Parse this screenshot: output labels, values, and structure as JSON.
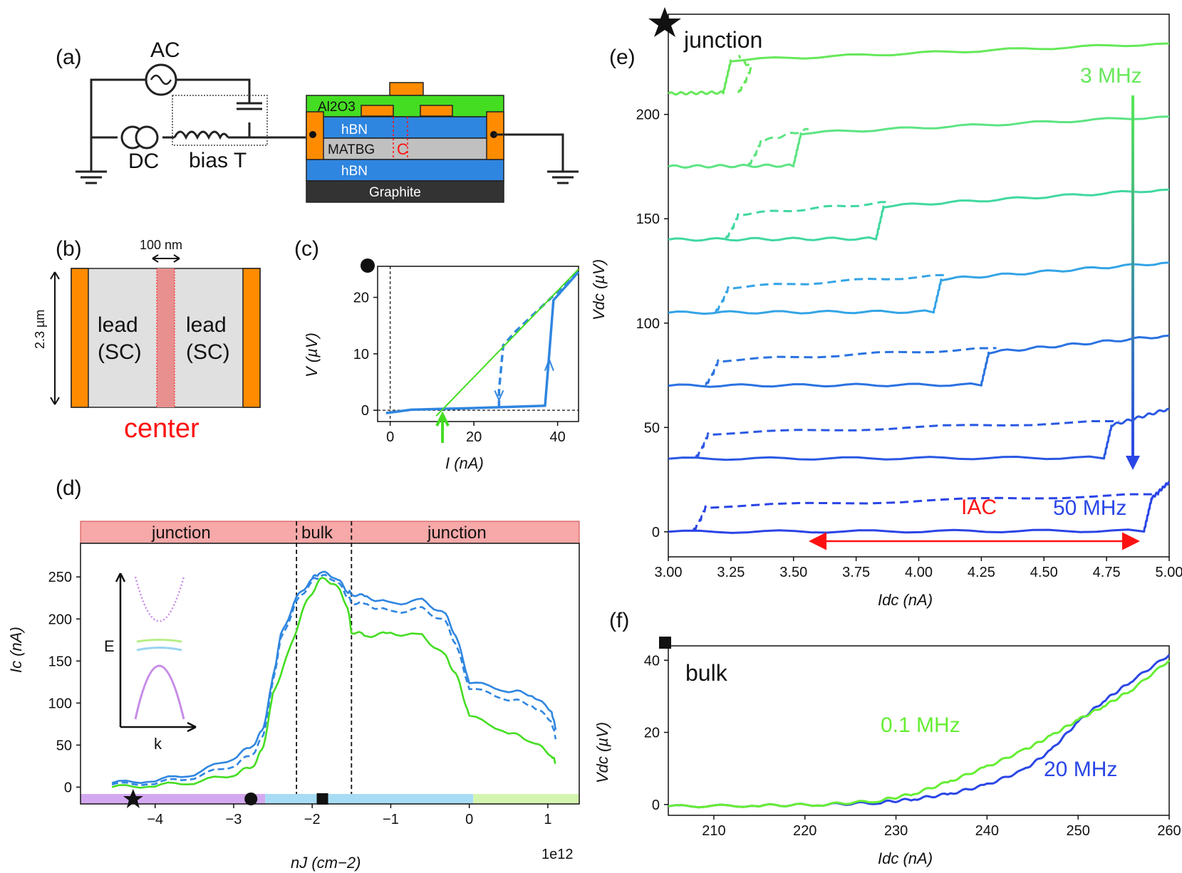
{
  "panels": {
    "a": {
      "label": "(a)",
      "ac": "AC",
      "dc": "DC",
      "bias_t": "bias T",
      "layers": {
        "top": "Al2O3",
        "hbn1": "hBN",
        "matbg": "MATBG",
        "hbn2": "hBN",
        "graphite": "Graphite"
      },
      "center_mark": "C"
    },
    "b": {
      "label": "(b)",
      "width_label": "100 nm",
      "height_label": "2.3 µm",
      "lead_left": [
        "lead",
        "(SC)"
      ],
      "lead_right": [
        "lead",
        "(SC)"
      ],
      "center": "center"
    },
    "c": {
      "label": "(c)",
      "xlabel": "I (nA)",
      "ylabel": "V (µV)",
      "marker": "circle"
    },
    "d": {
      "label": "(d)",
      "regions": [
        "junction",
        "bulk",
        "junction"
      ],
      "xlabel": "nJ (cm−2)",
      "ylabel": "Ic (nA)",
      "offset_text": "1e12",
      "inset": {
        "ylabel": "E",
        "xlabel": "k"
      },
      "markers": [
        "star",
        "circle",
        "square"
      ]
    },
    "e": {
      "label": "(e)",
      "title": "junction",
      "freq_top": "3 MHz",
      "freq_bottom": "50 MHz",
      "iac": "IAC",
      "xlabel": "Idc (nA)",
      "ylabel": "Vdc (µV)",
      "marker": "star"
    },
    "f": {
      "label": "(f)",
      "title": "bulk",
      "freq_a": "0.1 MHz",
      "freq_b": "20 MHz",
      "xlabel": "Idc (nA)",
      "ylabel": "Vdc (µV)",
      "marker": "square"
    }
  },
  "colors": {
    "orange": "#ff8c00",
    "green": "#44dd22",
    "blue": "#2f86e0",
    "darkblue": "#2a46e6",
    "pink": "#f7a8a8",
    "red": "#ff1111",
    "gray": "#c8c8c8",
    "black": "#333333"
  },
  "chart_data": [
    {
      "id": "c",
      "type": "line",
      "xlabel": "I (nA)",
      "ylabel": "V (µV)",
      "xlim": [
        -3,
        45
      ],
      "ylim": [
        -2,
        25.5
      ],
      "xticks": [
        0,
        20,
        40
      ],
      "yticks": [
        0,
        10,
        20
      ],
      "series": [
        {
          "style": "solid",
          "color": "#2f86e0",
          "x": [
            -1,
            5,
            20,
            37,
            38,
            39,
            45
          ],
          "y": [
            -0.5,
            0.1,
            0.4,
            0.8,
            10,
            19.5,
            24.5
          ]
        },
        {
          "style": "dashed",
          "color": "#2f86e0",
          "x": [
            26,
            26,
            27,
            30,
            35,
            40,
            45
          ],
          "y": [
            0.5,
            3.5,
            11.5,
            14,
            17.5,
            21,
            24.5
          ]
        },
        {
          "style": "solid",
          "color": "#44dd22",
          "x": [
            11,
            45
          ],
          "y": [
            -1,
            25
          ]
        }
      ],
      "arrow_x": 12.5
    },
    {
      "id": "d",
      "type": "line",
      "xlabel": "nJ (cm−2)",
      "ylabel": "Ic (nA)",
      "x_scale_label": "1e12",
      "xlim": [
        -4.95,
        1.4
      ],
      "ylim": [
        -20,
        290
      ],
      "xticks": [
        -4,
        -3,
        -2,
        -1,
        0,
        1
      ],
      "yticks": [
        0,
        50,
        100,
        150,
        200,
        250
      ],
      "region_bounds": [
        -2.2,
        -1.5
      ],
      "series": [
        {
          "style": "solid",
          "color": "#2f86e0",
          "x": [
            -4.55,
            -4.0,
            -3.5,
            -3.0,
            -2.75,
            -2.62,
            -2.5,
            -2.4,
            -2.2,
            -2.0,
            -1.9,
            -1.7,
            -1.55,
            -1.5,
            -1.3,
            -1.0,
            -0.6,
            -0.3,
            -0.15,
            0.0,
            0.5,
            0.8,
            1.05,
            1.1
          ],
          "y": [
            5,
            8,
            16,
            35,
            50,
            70,
            130,
            180,
            225,
            248,
            256,
            250,
            233,
            230,
            226,
            218,
            222,
            205,
            175,
            125,
            115,
            110,
            90,
            68
          ]
        },
        {
          "style": "dashed",
          "color": "#2f86e0",
          "x": [
            -4.55,
            -4.0,
            -3.5,
            -3.0,
            -2.75,
            -2.62,
            -2.5,
            -2.4,
            -2.2,
            -2.0,
            -1.9,
            -1.7,
            -1.55,
            -1.5,
            -1.3,
            -1.0,
            -0.6,
            -0.3,
            -0.15,
            0.0,
            0.5,
            0.8,
            1.05,
            1.1
          ],
          "y": [
            3,
            5,
            12,
            26,
            40,
            62,
            125,
            175,
            220,
            245,
            252,
            247,
            227,
            220,
            217,
            208,
            212,
            196,
            165,
            118,
            105,
            98,
            78,
            57
          ]
        },
        {
          "style": "solid",
          "color": "#44dd22",
          "x": [
            -4.55,
            -4.0,
            -3.5,
            -3.0,
            -2.75,
            -2.62,
            -2.5,
            -2.3,
            -2.1,
            -1.9,
            -1.7,
            -1.55,
            -1.5,
            -1.3,
            -1.0,
            -0.6,
            -0.3,
            -0.15,
            0.0,
            0.5,
            0.8,
            1.05,
            1.1
          ],
          "y": [
            0,
            2,
            6,
            15,
            25,
            48,
            110,
            160,
            215,
            248,
            242,
            215,
            185,
            180,
            183,
            180,
            155,
            130,
            85,
            65,
            55,
            38,
            28
          ]
        }
      ],
      "bottom_band": [
        {
          "from": -4.95,
          "to": -2.6,
          "color": "#d3a8f0"
        },
        {
          "from": -2.6,
          "to": 0.05,
          "color": "#a8dcf4"
        },
        {
          "from": 0.05,
          "to": 1.4,
          "color": "#d4f5b0"
        }
      ],
      "marker_positions": [
        -4.28,
        -2.78,
        -1.87
      ]
    },
    {
      "id": "e",
      "type": "line",
      "xlabel": "Idc (nA)",
      "ylabel": "Vdc (µV)",
      "xlim": [
        3.0,
        5.0
      ],
      "ylim": [
        -12,
        248
      ],
      "xticks": [
        3.0,
        3.25,
        3.5,
        3.75,
        4.0,
        4.25,
        4.5,
        4.75,
        5.0
      ],
      "yticks": [
        0,
        50,
        100,
        150,
        200
      ],
      "series": [
        {
          "color": "#66e85a",
          "offset": 210,
          "ir": 3.31,
          "is": 3.25
        },
        {
          "color": "#5ce482",
          "offset": 175,
          "ir": 3.35,
          "is": 3.53
        },
        {
          "color": "#40d8a0",
          "offset": 140,
          "ir": 3.26,
          "is": 3.86
        },
        {
          "color": "#34a4e6",
          "offset": 105,
          "ir": 3.22,
          "is": 4.09
        },
        {
          "color": "#2a72e2",
          "offset": 70,
          "ir": 3.18,
          "is": 4.28
        },
        {
          "color": "#2a58e4",
          "offset": 35,
          "ir": 3.14,
          "is": 4.77
        },
        {
          "color": "#2a44e6",
          "offset": 0,
          "ir": 3.13,
          "is": 4.93
        }
      ]
    },
    {
      "id": "f",
      "type": "line",
      "xlabel": "Idc (nA)",
      "ylabel": "Vdc (µV)",
      "xlim": [
        205,
        260
      ],
      "ylim": [
        -3,
        44
      ],
      "xticks": [
        210,
        220,
        230,
        240,
        250,
        260
      ],
      "yticks": [
        0,
        20,
        40
      ],
      "series": [
        {
          "name": "20 MHz",
          "color": "#2a46e6",
          "x": [
            205,
            215,
            222,
            228,
            232,
            236,
            240,
            244,
            247,
            250,
            253,
            256,
            260
          ],
          "y": [
            -0.5,
            -0.3,
            0,
            0.5,
            1.5,
            3,
            5.5,
            9.5,
            15,
            23,
            29,
            34.5,
            41.5
          ]
        },
        {
          "name": "0.1 MHz",
          "color": "#66ee33",
          "x": [
            205,
            215,
            222,
            228,
            232,
            236,
            240,
            244,
            247,
            250,
            253,
            256,
            260
          ],
          "y": [
            -0.5,
            -0.3,
            0,
            1,
            3,
            6.5,
            10.5,
            15,
            19,
            23.5,
            27.5,
            32,
            40
          ]
        }
      ]
    }
  ]
}
